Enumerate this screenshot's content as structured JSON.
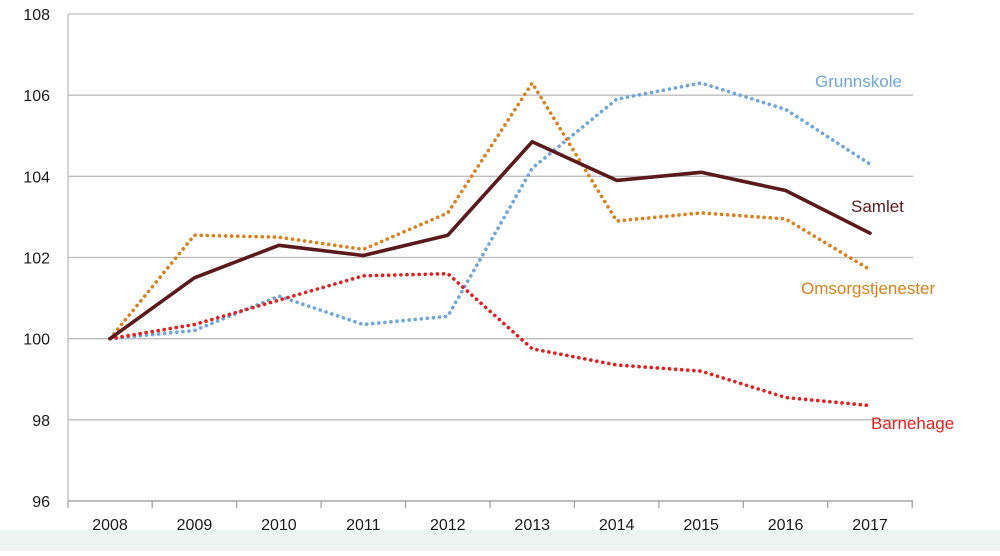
{
  "chart_data": {
    "type": "line",
    "x": [
      "2008",
      "2009",
      "2010",
      "2011",
      "2012",
      "2013",
      "2014",
      "2015",
      "2016",
      "2017"
    ],
    "ylim": [
      96,
      108
    ],
    "yticks": [
      96,
      98,
      100,
      102,
      104,
      106,
      108
    ],
    "grid": "horizontal",
    "legend": "inline-right",
    "series": [
      {
        "name": "Grunnskole",
        "color": "#6ea6d8",
        "style": "dotted",
        "values": [
          100.0,
          100.2,
          101.05,
          100.35,
          100.55,
          104.2,
          105.9,
          106.3,
          105.65,
          104.3
        ]
      },
      {
        "name": "Samlet",
        "color": "#5a1a1c",
        "style": "solid",
        "values": [
          100.0,
          101.5,
          102.3,
          102.05,
          102.55,
          104.85,
          103.9,
          104.1,
          103.65,
          102.6
        ]
      },
      {
        "name": "Omsorgstjenester",
        "color": "#d9801c",
        "style": "dotted",
        "values": [
          100.0,
          102.55,
          102.5,
          102.2,
          103.1,
          106.3,
          102.9,
          103.1,
          102.95,
          101.7
        ]
      },
      {
        "name": "Barnehage",
        "color": "#e02020",
        "style": "dotted",
        "values": [
          100.0,
          100.35,
          100.95,
          101.55,
          101.6,
          99.75,
          99.35,
          99.2,
          98.55,
          98.35
        ]
      }
    ]
  }
}
